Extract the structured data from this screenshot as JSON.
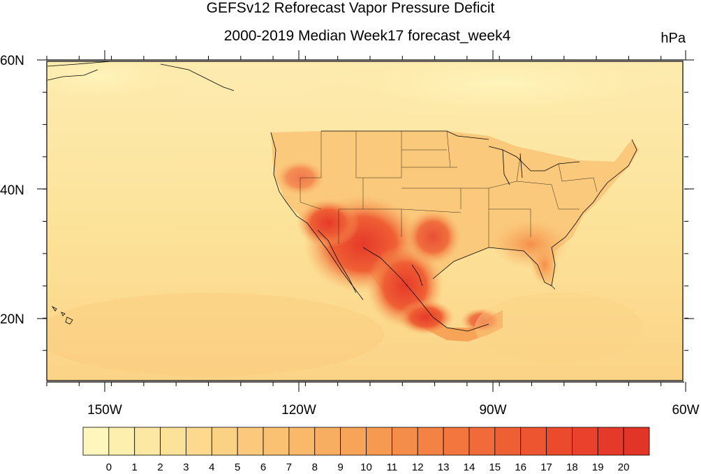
{
  "title": "GEFSv12 Reforecast Vapor Pressure Deficit",
  "subtitle": "2000-2019 Median Week17 forecast_week4",
  "units": "hPa",
  "lat_labels": [
    "60N",
    "40N",
    "20N"
  ],
  "lon_labels": [
    "150W",
    "120W",
    "90W",
    "60W"
  ],
  "colorbar": {
    "labels": [
      "0",
      "1",
      "2",
      "3",
      "4",
      "5",
      "6",
      "7",
      "8",
      "9",
      "10",
      "11",
      "12",
      "13",
      "14",
      "15",
      "16",
      "17",
      "18",
      "19",
      "20"
    ],
    "colors": [
      "#fff6bd",
      "#fdefae",
      "#fde8a3",
      "#fce198",
      "#fcd98e",
      "#fbd284",
      "#fbc97b",
      "#fac172",
      "#f9b86a",
      "#f8ae61",
      "#f7a459",
      "#f69951",
      "#f58d4a",
      "#f48244",
      "#f3763e",
      "#f16a39",
      "#ef5f34",
      "#ed5430",
      "#eb4a2d",
      "#e9412b",
      "#e53a29",
      "#e23427"
    ]
  },
  "map": {
    "lon_range": [
      -160,
      -60
    ],
    "lat_range": [
      10,
      60
    ],
    "ocean_color": "#fce7a0",
    "land_base_color": "#fbd384",
    "hotspot_color": "#e53a29"
  }
}
